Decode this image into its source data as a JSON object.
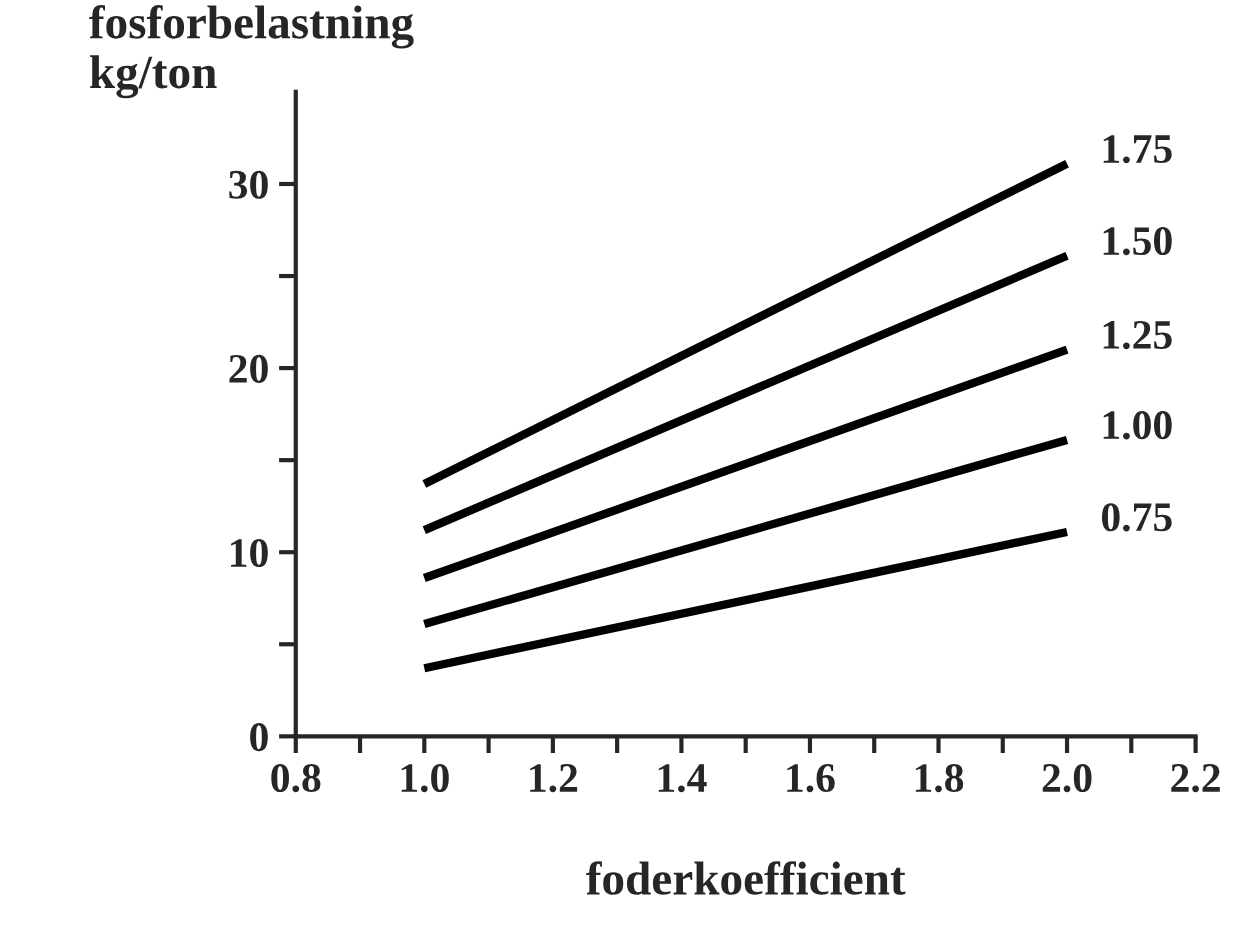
{
  "chart_data": {
    "type": "line",
    "ylabel": "fosforbelastning\nkg/ton",
    "xlabel": "foderkoefficient",
    "x": [
      1.0,
      2.0
    ],
    "series": [
      {
        "name": "1.75",
        "color": "#000000",
        "values": [
          13.7,
          31.1
        ]
      },
      {
        "name": "1.50",
        "color": "#000000",
        "values": [
          11.2,
          26.1
        ]
      },
      {
        "name": "1.25",
        "color": "#000000",
        "values": [
          8.6,
          21.0
        ]
      },
      {
        "name": "1.00",
        "color": "#000000",
        "values": [
          6.1,
          16.1
        ]
      },
      {
        "name": "0.75",
        "color": "#000000",
        "values": [
          3.7,
          11.1
        ]
      }
    ],
    "xlim": [
      0.8,
      2.2
    ],
    "xticks": [
      {
        "value": 0.8,
        "label": "0.8"
      },
      {
        "value": 0.9,
        "label": null
      },
      {
        "value": 1.0,
        "label": "1.0"
      },
      {
        "value": 1.1,
        "label": null
      },
      {
        "value": 1.2,
        "label": "1.2"
      },
      {
        "value": 1.3,
        "label": null
      },
      {
        "value": 1.4,
        "label": "1.4"
      },
      {
        "value": 1.5,
        "label": null
      },
      {
        "value": 1.6,
        "label": "1.6"
      },
      {
        "value": 1.7,
        "label": null
      },
      {
        "value": 1.8,
        "label": "1.8"
      },
      {
        "value": 1.9,
        "label": null
      },
      {
        "value": 2.0,
        "label": "2.0"
      },
      {
        "value": 2.1,
        "label": null
      },
      {
        "value": 2.2,
        "label": "2.2"
      }
    ],
    "ylim": [
      0,
      35
    ],
    "yticks": [
      0,
      {
        "value": 5,
        "label": null
      },
      10,
      {
        "value": 15,
        "label": null
      },
      20,
      {
        "value": 25,
        "label": null
      },
      30
    ],
    "grid": false,
    "legend": false,
    "marker": "none",
    "line_style": "solid"
  }
}
